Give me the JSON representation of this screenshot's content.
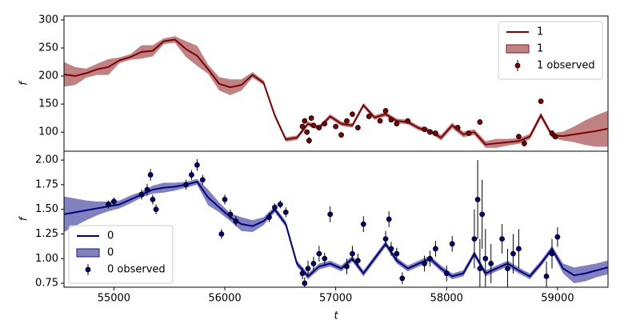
{
  "chart_data": [
    {
      "type": "line",
      "ylabel": "f",
      "xlim": [
        54550,
        59455
      ],
      "ylim": [
        66,
        307
      ],
      "yticks": [
        100,
        150,
        200,
        250,
        300
      ],
      "legend": "upper right",
      "x": [
        54550,
        54650,
        54750,
        54850,
        54950,
        55050,
        55150,
        55250,
        55350,
        55450,
        55550,
        55650,
        55750,
        55850,
        55950,
        56050,
        56150,
        56250,
        56350,
        56450,
        56550,
        56650,
        56750,
        56850,
        56950,
        57050,
        57150,
        57250,
        57350,
        57450,
        57550,
        57650,
        57750,
        57850,
        57950,
        58050,
        58150,
        58250,
        58350,
        58450,
        58550,
        58650,
        58750,
        58850,
        58950,
        59050,
        59150,
        59250,
        59350,
        59450
      ],
      "series": [
        {
          "name": "1",
          "mark": "line",
          "color": "#800000",
          "values": [
            203,
            200,
            205,
            212,
            216,
            228,
            234,
            243,
            245,
            262,
            265,
            248,
            236,
            212,
            186,
            180,
            184,
            202,
            188,
            130,
            87,
            90,
            115,
            108,
            128,
            115,
            112,
            148,
            126,
            132,
            120,
            118,
            107,
            102,
            90,
            112,
            96,
            100,
            78,
            80,
            82,
            84,
            92,
            130,
            94,
            93,
            96,
            99,
            102,
            106
          ]
        },
        {
          "name": "1",
          "mark": "band",
          "color": "#8b1a1a",
          "lower": [
            181,
            184,
            197,
            202,
            202,
            223,
            229,
            231,
            235,
            257,
            259,
            234,
            218,
            204,
            174,
            166,
            174,
            197,
            184,
            126,
            83,
            86,
            111,
            104,
            124,
            111,
            108,
            144,
            122,
            128,
            116,
            114,
            103,
            98,
            85,
            107,
            91,
            95,
            72,
            72,
            76,
            79,
            87,
            125,
            90,
            85,
            82,
            77,
            74,
            74
          ],
          "upper": [
            225,
            216,
            213,
            222,
            230,
            233,
            239,
            255,
            255,
            267,
            271,
            262,
            254,
            220,
            198,
            194,
            194,
            207,
            192,
            134,
            91,
            94,
            119,
            112,
            132,
            119,
            116,
            152,
            130,
            136,
            124,
            122,
            111,
            106,
            95,
            117,
            101,
            105,
            84,
            88,
            88,
            89,
            97,
            135,
            98,
            101,
            110,
            121,
            130,
            138
          ]
        },
        {
          "name": "1 observed",
          "mark": "errorbar",
          "color": "#800000",
          "x": [
            56700,
            56720,
            56740,
            56760,
            56780,
            56800,
            56850,
            56900,
            57000,
            57050,
            57100,
            57150,
            57200,
            57300,
            57400,
            57450,
            57500,
            57550,
            57650,
            57800,
            57850,
            57900,
            58100,
            58200,
            58300,
            58650,
            58700,
            58850,
            58950,
            58980
          ],
          "values": [
            110,
            120,
            100,
            85,
            125,
            112,
            108,
            115,
            110,
            95,
            120,
            132,
            108,
            128,
            120,
            138,
            122,
            115,
            120,
            105,
            100,
            98,
            108,
            98,
            118,
            92,
            80,
            155,
            98,
            92
          ],
          "errors": [
            5,
            5,
            5,
            6,
            5,
            5,
            4,
            4,
            4,
            5,
            4,
            5,
            4,
            4,
            4,
            5,
            4,
            4,
            4,
            4,
            4,
            4,
            5,
            5,
            5,
            5,
            6,
            4,
            5,
            5
          ]
        }
      ]
    },
    {
      "type": "line",
      "ylabel": "f",
      "xlabel": "t",
      "xlim": [
        54550,
        59455
      ],
      "ylim": [
        0.71,
        2.09
      ],
      "yticks": [
        {
          "value": 0.75,
          "label": "0.75"
        },
        {
          "value": 1,
          "label": "1.00"
        },
        {
          "value": 1.25,
          "label": "1.25"
        },
        {
          "value": 1.5,
          "label": "1.50"
        },
        {
          "value": 1.75,
          "label": "1.75"
        },
        {
          "value": 2,
          "label": "2.00"
        }
      ],
      "xticks": [
        55000,
        56000,
        57000,
        58000,
        59000
      ],
      "legend": "lower left",
      "x": [
        54550,
        54650,
        54750,
        54850,
        54950,
        55050,
        55150,
        55250,
        55350,
        55450,
        55550,
        55650,
        55750,
        55850,
        55950,
        56050,
        56150,
        56250,
        56350,
        56450,
        56550,
        56650,
        56750,
        56850,
        56950,
        57050,
        57150,
        57250,
        57350,
        57450,
        57550,
        57650,
        57750,
        57850,
        57950,
        58050,
        58150,
        58250,
        58350,
        58450,
        58550,
        58650,
        58750,
        58850,
        58950,
        59050,
        59150,
        59250,
        59350,
        59450
      ],
      "series": [
        {
          "name": "0",
          "mark": "line",
          "color": "#000080",
          "values": [
            1.45,
            1.47,
            1.49,
            1.51,
            1.53,
            1.55,
            1.6,
            1.65,
            1.7,
            1.72,
            1.73,
            1.75,
            1.78,
            1.62,
            1.52,
            1.42,
            1.35,
            1.33,
            1.38,
            1.5,
            1.35,
            0.95,
            0.82,
            0.92,
            0.95,
            0.9,
            1.0,
            0.85,
            1.0,
            1.15,
            0.98,
            0.9,
            0.95,
            1.0,
            0.9,
            0.82,
            0.85,
            1.05,
            0.85,
            0.9,
            0.95,
            0.88,
            0.82,
            0.95,
            1.1,
            0.9,
            0.83,
            0.85,
            0.88,
            0.91
          ]
        },
        {
          "name": "0",
          "mark": "band",
          "color": "#1a1a8b",
          "lower": [
            1.27,
            1.33,
            1.39,
            1.44,
            1.48,
            1.51,
            1.56,
            1.62,
            1.66,
            1.67,
            1.69,
            1.72,
            1.75,
            1.54,
            1.47,
            1.38,
            1.28,
            1.27,
            1.34,
            1.47,
            1.32,
            0.92,
            0.79,
            0.89,
            0.92,
            0.87,
            0.97,
            0.82,
            0.97,
            1.12,
            0.95,
            0.87,
            0.92,
            0.97,
            0.87,
            0.79,
            0.82,
            1.02,
            0.82,
            0.87,
            0.92,
            0.85,
            0.79,
            0.92,
            1.07,
            0.85,
            0.75,
            0.77,
            0.81,
            0.84
          ],
          "upper": [
            1.63,
            1.61,
            1.59,
            1.58,
            1.58,
            1.59,
            1.64,
            1.68,
            1.74,
            1.77,
            1.77,
            1.78,
            1.81,
            1.7,
            1.57,
            1.46,
            1.42,
            1.39,
            1.42,
            1.53,
            1.38,
            0.98,
            0.85,
            0.95,
            0.98,
            0.93,
            1.03,
            0.88,
            1.03,
            1.18,
            1.01,
            0.93,
            0.98,
            1.03,
            0.93,
            0.85,
            0.88,
            1.08,
            0.88,
            0.93,
            0.98,
            0.91,
            0.85,
            0.98,
            1.13,
            0.95,
            0.91,
            0.93,
            0.95,
            0.98
          ]
        },
        {
          "name": "0 observed",
          "mark": "errorbar",
          "color": "#000080",
          "x": [
            54950,
            55000,
            55250,
            55300,
            55330,
            55350,
            55380,
            55650,
            55700,
            55750,
            55800,
            55970,
            56000,
            56050,
            56100,
            56400,
            56450,
            56500,
            56550,
            56700,
            56720,
            56750,
            56800,
            56850,
            56900,
            56950,
            57100,
            57150,
            57200,
            57250,
            57450,
            57480,
            57500,
            57550,
            57600,
            57800,
            57850,
            57900,
            58000,
            58050,
            58250,
            58280,
            58300,
            58320,
            58350,
            58400,
            58500,
            58550,
            58600,
            58650,
            58900,
            58950,
            59000
          ],
          "values": [
            1.55,
            1.58,
            1.65,
            1.7,
            1.85,
            1.6,
            1.5,
            1.75,
            1.85,
            1.95,
            1.8,
            1.25,
            1.6,
            1.45,
            1.38,
            1.42,
            1.52,
            1.55,
            1.47,
            0.85,
            0.75,
            0.9,
            0.95,
            1.05,
            1.0,
            1.45,
            0.92,
            1.05,
            0.98,
            1.35,
            1.2,
            1.4,
            1.1,
            1.05,
            0.8,
            0.95,
            1.0,
            1.1,
            0.85,
            1.15,
            1.2,
            1.6,
            0.9,
            1.45,
            1.0,
            0.95,
            1.2,
            0.9,
            1.05,
            1.1,
            0.82,
            1.05,
            1.22
          ],
          "errors": [
            0.04,
            0.04,
            0.05,
            0.06,
            0.06,
            0.05,
            0.05,
            0.05,
            0.05,
            0.06,
            0.05,
            0.05,
            0.05,
            0.05,
            0.05,
            0.05,
            0.04,
            0.04,
            0.05,
            0.06,
            0.06,
            0.08,
            0.07,
            0.08,
            0.06,
            0.08,
            0.08,
            0.08,
            0.07,
            0.08,
            0.08,
            0.08,
            0.07,
            0.06,
            0.06,
            0.08,
            0.08,
            0.08,
            0.08,
            0.08,
            0.3,
            0.4,
            0.3,
            0.35,
            0.3,
            0.2,
            0.15,
            0.2,
            0.2,
            0.2,
            0.15,
            0.15,
            0.1
          ]
        }
      ]
    }
  ]
}
